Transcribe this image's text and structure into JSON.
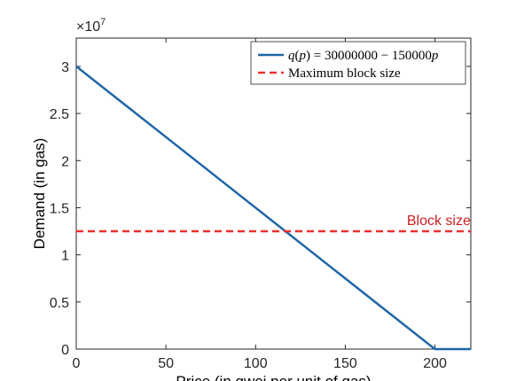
{
  "chart_data": {
    "type": "line",
    "title": "",
    "xlabel": "Price (in gwei per unit of gas)",
    "ylabel": "Demand (in gas)",
    "y_multiplier_label": "×10",
    "y_multiplier_exponent": "7",
    "xlim": [
      0,
      220
    ],
    "ylim": [
      0,
      33000000
    ],
    "x_ticks": [
      0,
      50,
      100,
      150,
      200
    ],
    "x_tick_labels": [
      "0",
      "50",
      "100",
      "150",
      "200"
    ],
    "y_ticks": [
      0,
      5000000,
      10000000,
      15000000,
      20000000,
      25000000,
      30000000
    ],
    "y_tick_labels": [
      "0",
      "0.5",
      "1",
      "1.5",
      "2",
      "2.5",
      "3"
    ],
    "grid": false,
    "legend_position": "top-right",
    "series": [
      {
        "name": "q(p) = 30000000 − 150000p",
        "legend_math": {
          "fn": "q",
          "arg": "p",
          "rest": " = 30000000 − 150000",
          "var": "p"
        },
        "style": "solid",
        "color": "#1f66a8",
        "x": [
          0,
          200,
          220
        ],
        "y": [
          30000000,
          0,
          0
        ]
      },
      {
        "name": "Maximum block size",
        "style": "dashed",
        "color": "#e8312f",
        "x": [
          0,
          220
        ],
        "y": [
          12500000,
          12500000
        ]
      }
    ],
    "annotations": [
      {
        "text": "Block size",
        "x": 215,
        "y": 12500000,
        "color": "#cc1f1f"
      }
    ]
  }
}
